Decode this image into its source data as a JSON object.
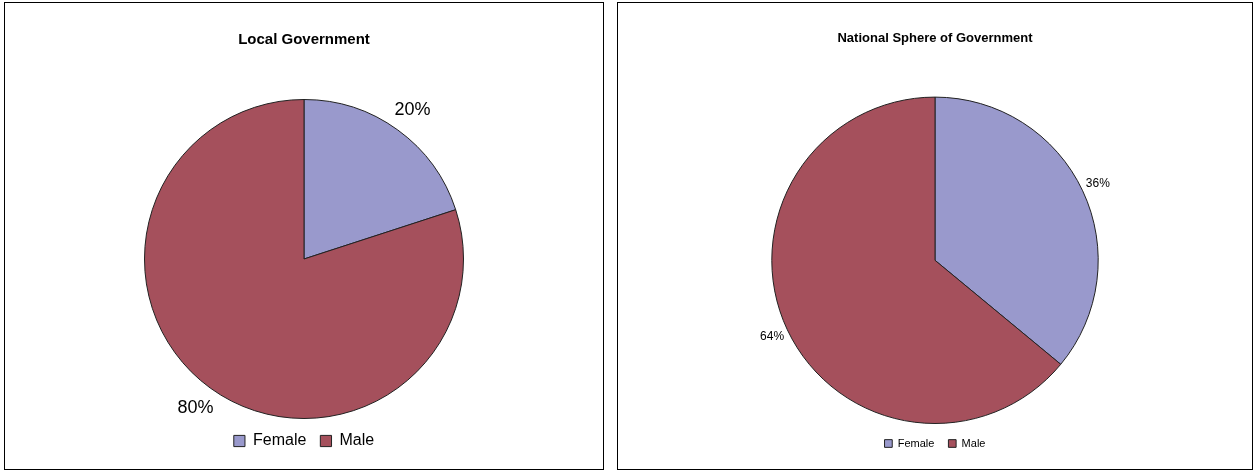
{
  "chart_data": [
    {
      "type": "pie",
      "title": "Local Government",
      "categories": [
        "Female",
        "Male"
      ],
      "values": [
        20,
        80
      ],
      "colors": [
        "#9999cc",
        "#a5505c"
      ],
      "value_labels": [
        "20%",
        "80%"
      ],
      "legend": "bottom"
    },
    {
      "type": "pie",
      "title": "National Sphere of Government",
      "categories": [
        "Female",
        "Male"
      ],
      "values": [
        36,
        64
      ],
      "colors": [
        "#9999cc",
        "#a5505c"
      ],
      "value_labels": [
        "36%",
        "64%"
      ],
      "legend": "bottom"
    }
  ]
}
